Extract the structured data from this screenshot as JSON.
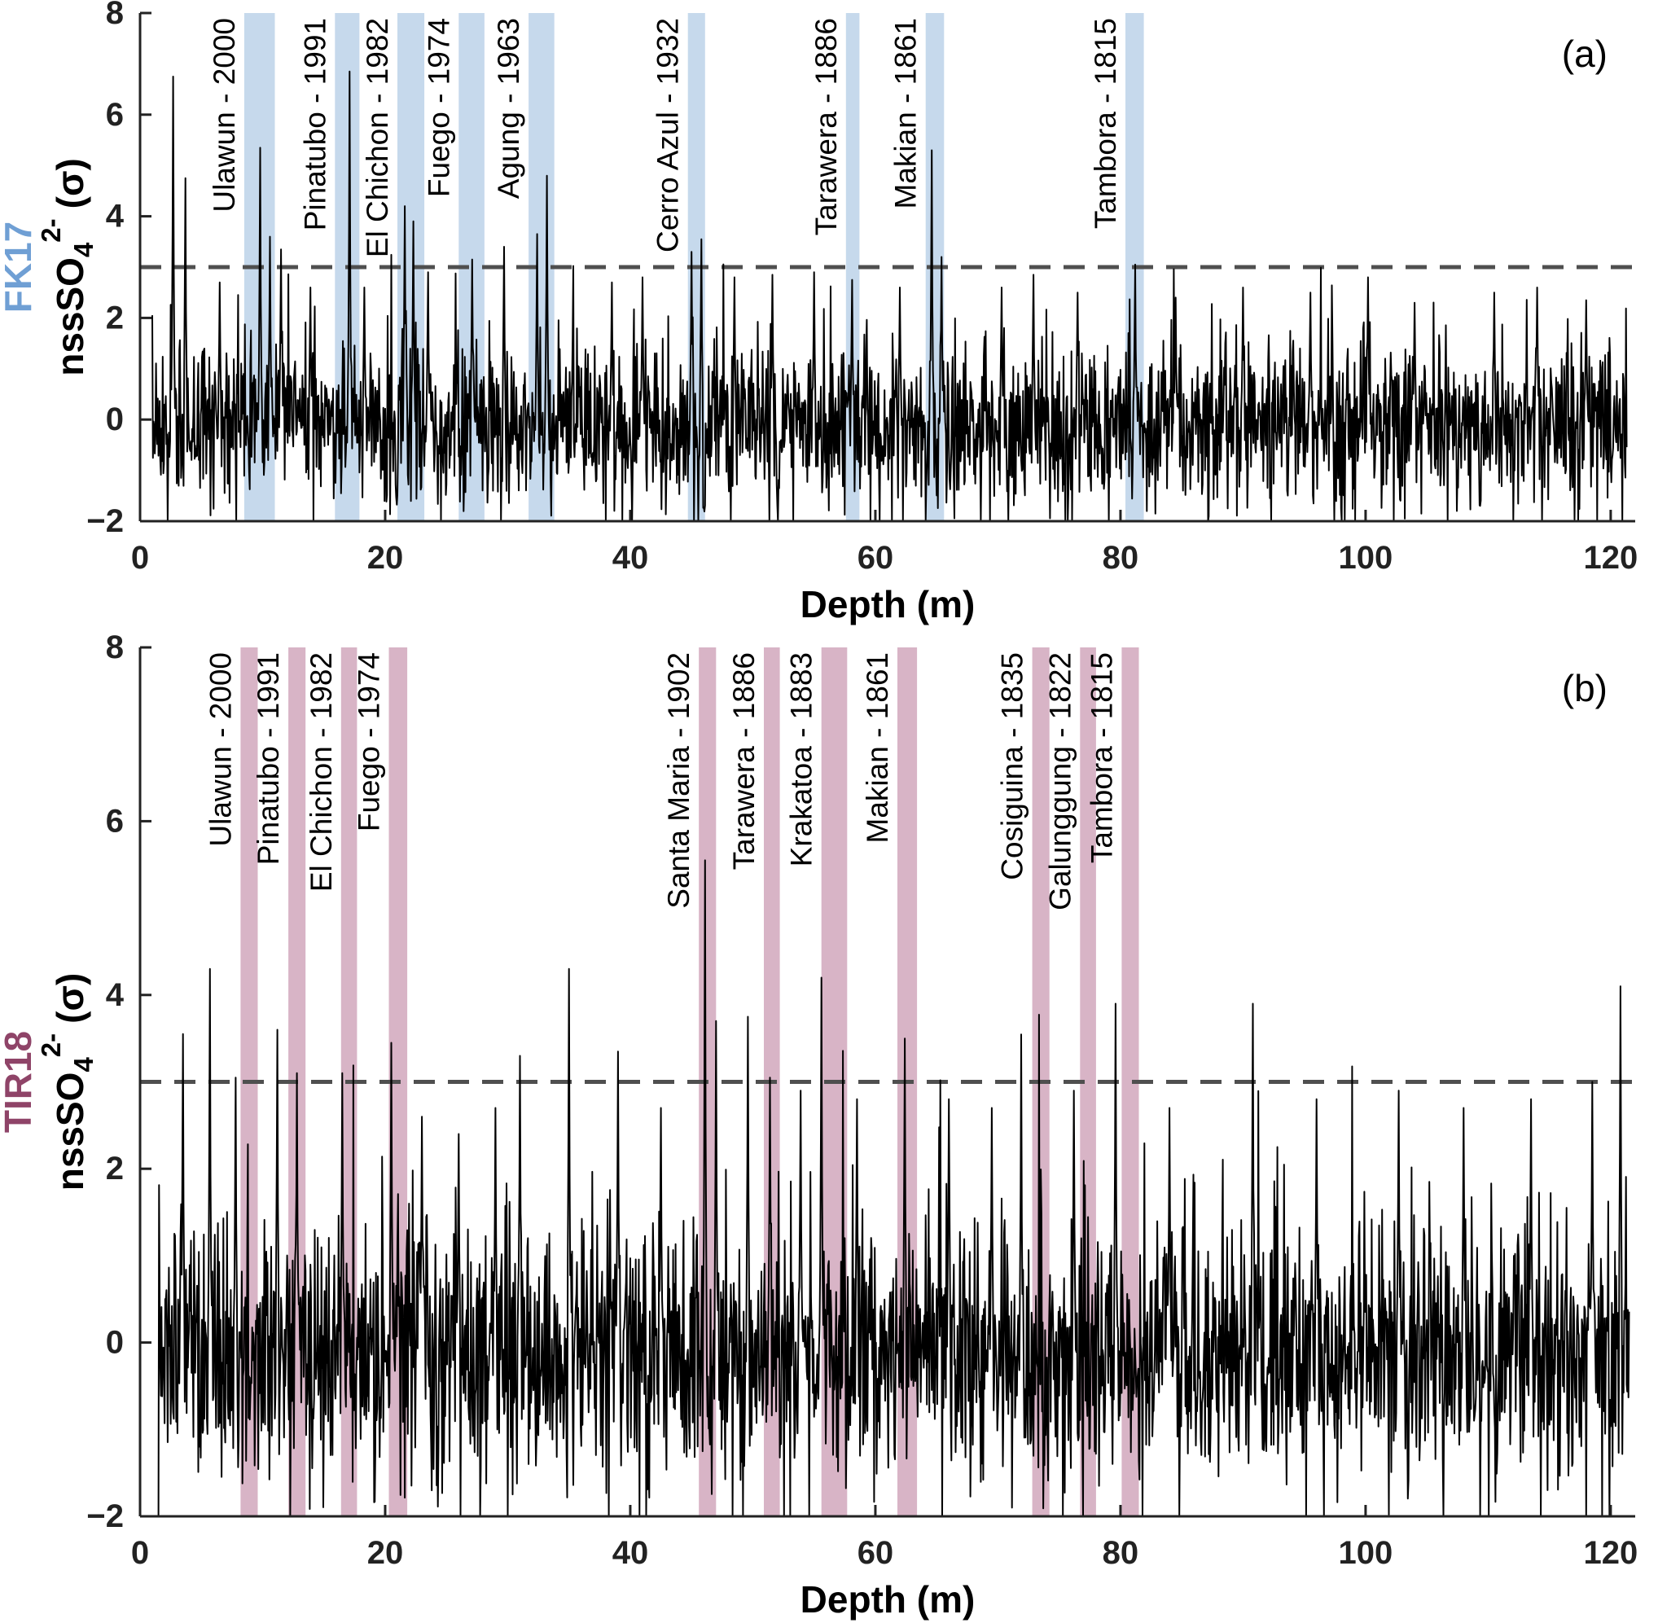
{
  "page": {
    "background": "#ffffff"
  },
  "chart_data": [
    {
      "type": "line",
      "panel_tag": "(a)",
      "core": "FK17",
      "core_color": "#6f9fd4",
      "band_color": "#c6d9ec",
      "trace_color": "#000000",
      "threshold_color": "#4f4f4f",
      "xlabel": "Depth (m)",
      "ylabel": {
        "prefix": "nssSO",
        "sub": "4",
        "sup": "2-",
        "suffix": "(σ)"
      },
      "xlim": [
        0,
        122
      ],
      "ylim": [
        -2,
        8
      ],
      "xticks": [
        0,
        20,
        40,
        60,
        80,
        100,
        120
      ],
      "yticks": [
        -2,
        0,
        2,
        4,
        6,
        8
      ],
      "threshold_sigma": 3,
      "grid": false,
      "description": "High-resolution nssSO4 anomaly (sigma units) vs depth; dense noisy trace clipped at y=-2; dashed 3-sigma detection threshold; shaded bands mark volcanic eruption horizons.",
      "eruptions": [
        {
          "label": "Ulawun - 2000",
          "from": 8.5,
          "to": 11.0
        },
        {
          "label": "Pinatubo - 1991",
          "from": 15.9,
          "to": 17.9
        },
        {
          "label": "El Chichon - 1982",
          "from": 21.0,
          "to": 23.2
        },
        {
          "label": "Fuego - 1974",
          "from": 26.0,
          "to": 28.1
        },
        {
          "label": "Agung - 1963",
          "from": 31.7,
          "to": 33.8
        },
        {
          "label": "Cerro Azul - 1932",
          "from": 44.7,
          "to": 46.1
        },
        {
          "label": "Tarawera - 1886",
          "from": 57.6,
          "to": 58.7
        },
        {
          "label": "Makian - 1861",
          "from": 64.1,
          "to": 65.6
        },
        {
          "label": "Tambora - 1815",
          "from": 80.4,
          "to": 81.9
        }
      ],
      "peaks": [
        {
          "x": 2.7,
          "y": 6.75
        },
        {
          "x": 3.7,
          "y": 4.75
        },
        {
          "x": 6.5,
          "y": 2.7
        },
        {
          "x": 9.8,
          "y": 5.35
        },
        {
          "x": 10.6,
          "y": 3.6
        },
        {
          "x": 11.5,
          "y": 3.35
        },
        {
          "x": 13.9,
          "y": 2.6
        },
        {
          "x": 17.1,
          "y": 6.85
        },
        {
          "x": 18.3,
          "y": 2.6
        },
        {
          "x": 21.6,
          "y": 4.2
        },
        {
          "x": 22.3,
          "y": 3.9
        },
        {
          "x": 23.5,
          "y": 2.9
        },
        {
          "x": 27.1,
          "y": 3.15
        },
        {
          "x": 29.7,
          "y": 3.4
        },
        {
          "x": 32.4,
          "y": 3.65
        },
        {
          "x": 33.2,
          "y": 4.8
        },
        {
          "x": 38.5,
          "y": 2.7
        },
        {
          "x": 41.0,
          "y": 2.8
        },
        {
          "x": 45.0,
          "y": 3.3
        },
        {
          "x": 45.8,
          "y": 3.55
        },
        {
          "x": 48.5,
          "y": 2.8
        },
        {
          "x": 51.6,
          "y": 2.85
        },
        {
          "x": 55.0,
          "y": 2.9
        },
        {
          "x": 58.1,
          "y": 2.75
        },
        {
          "x": 62.0,
          "y": 2.6
        },
        {
          "x": 64.6,
          "y": 5.3
        },
        {
          "x": 65.4,
          "y": 3.2
        },
        {
          "x": 70.3,
          "y": 2.6
        },
        {
          "x": 72.9,
          "y": 2.85
        },
        {
          "x": 76.5,
          "y": 2.5
        },
        {
          "x": 81.2,
          "y": 3.05
        },
        {
          "x": 84.5,
          "y": 2.4
        },
        {
          "x": 90.0,
          "y": 2.6
        },
        {
          "x": 95.5,
          "y": 2.5
        },
        {
          "x": 100.2,
          "y": 2.8
        },
        {
          "x": 104.0,
          "y": 2.3
        },
        {
          "x": 110.5,
          "y": 2.5
        },
        {
          "x": 114.0,
          "y": 2.6
        },
        {
          "x": 118.0,
          "y": 2.35
        }
      ],
      "noise": {
        "seed": 7,
        "mean": -0.1,
        "std": 0.78,
        "step": 0.05,
        "x_start": 1.0,
        "x_end": 121.3
      }
    },
    {
      "type": "line",
      "panel_tag": "(b)",
      "core": "TIR18",
      "core_color": "#8f4468",
      "band_color": "#d8b4c6",
      "trace_color": "#000000",
      "threshold_color": "#4f4f4f",
      "xlabel": "Depth (m)",
      "ylabel": {
        "prefix": "nssSO",
        "sub": "4",
        "sup": "2-",
        "suffix": "(σ)"
      },
      "xlim": [
        0,
        122
      ],
      "ylim": [
        -2,
        8
      ],
      "xticks": [
        0,
        20,
        40,
        60,
        80,
        100,
        120
      ],
      "yticks": [
        -2,
        0,
        2,
        4,
        6,
        8
      ],
      "threshold_sigma": 3,
      "grid": false,
      "description": "High-resolution nssSO4 anomaly (sigma units) vs depth; dense noisy trace clipped at y=-2; dashed 3-sigma detection threshold; shaded bands mark volcanic eruption horizons.",
      "eruptions": [
        {
          "label": "Ulawun - 2000",
          "from": 8.2,
          "to": 9.6
        },
        {
          "label": "Pinatubo - 1991",
          "from": 12.1,
          "to": 13.5
        },
        {
          "label": "El Chichon - 1982",
          "from": 16.4,
          "to": 17.7
        },
        {
          "label": "Fuego - 1974",
          "from": 20.3,
          "to": 21.8
        },
        {
          "label": "Santa Maria - 1902",
          "from": 45.6,
          "to": 47.0
        },
        {
          "label": "Tarawera - 1886",
          "from": 50.9,
          "to": 52.2
        },
        {
          "label": "Krakatoa - 1883",
          "from": 55.6,
          "to": 57.7
        },
        {
          "label": "Makian - 1861",
          "from": 61.8,
          "to": 63.4
        },
        {
          "label": "Cosiguina - 1835",
          "from": 72.8,
          "to": 74.2
        },
        {
          "label": "Galunggung - 1822",
          "from": 76.7,
          "to": 78.0
        },
        {
          "label": "Tambora - 1815",
          "from": 80.1,
          "to": 81.5
        }
      ],
      "peaks": [
        {
          "x": 3.5,
          "y": 3.55
        },
        {
          "x": 5.7,
          "y": 4.3
        },
        {
          "x": 7.8,
          "y": 3.05
        },
        {
          "x": 11.2,
          "y": 3.6
        },
        {
          "x": 12.8,
          "y": 3.1
        },
        {
          "x": 16.5,
          "y": 3.1
        },
        {
          "x": 20.5,
          "y": 3.45
        },
        {
          "x": 23.0,
          "y": 2.6
        },
        {
          "x": 26.0,
          "y": 2.4
        },
        {
          "x": 29.0,
          "y": 2.7
        },
        {
          "x": 31.0,
          "y": 3.3
        },
        {
          "x": 35.0,
          "y": 4.3
        },
        {
          "x": 39.0,
          "y": 3.35
        },
        {
          "x": 42.5,
          "y": 2.7
        },
        {
          "x": 46.1,
          "y": 5.55
        },
        {
          "x": 47.0,
          "y": 3.7
        },
        {
          "x": 49.6,
          "y": 3.75
        },
        {
          "x": 51.4,
          "y": 3.05
        },
        {
          "x": 53.9,
          "y": 2.9
        },
        {
          "x": 55.6,
          "y": 4.2
        },
        {
          "x": 58.5,
          "y": 2.8
        },
        {
          "x": 62.4,
          "y": 3.5
        },
        {
          "x": 66.0,
          "y": 2.8
        },
        {
          "x": 69.5,
          "y": 2.7
        },
        {
          "x": 71.9,
          "y": 3.1
        },
        {
          "x": 76.2,
          "y": 2.9
        },
        {
          "x": 79.6,
          "y": 3.9
        },
        {
          "x": 84.0,
          "y": 2.7
        },
        {
          "x": 90.8,
          "y": 3.9
        },
        {
          "x": 96.0,
          "y": 2.8
        },
        {
          "x": 102.7,
          "y": 2.9
        },
        {
          "x": 108.0,
          "y": 2.7
        },
        {
          "x": 113.5,
          "y": 2.8
        },
        {
          "x": 118.5,
          "y": 3.0
        },
        {
          "x": 120.8,
          "y": 4.1
        }
      ],
      "noise": {
        "seed": 13,
        "mean": -0.1,
        "std": 0.72,
        "step": 0.05,
        "x_start": 1.5,
        "x_end": 121.5
      }
    }
  ]
}
